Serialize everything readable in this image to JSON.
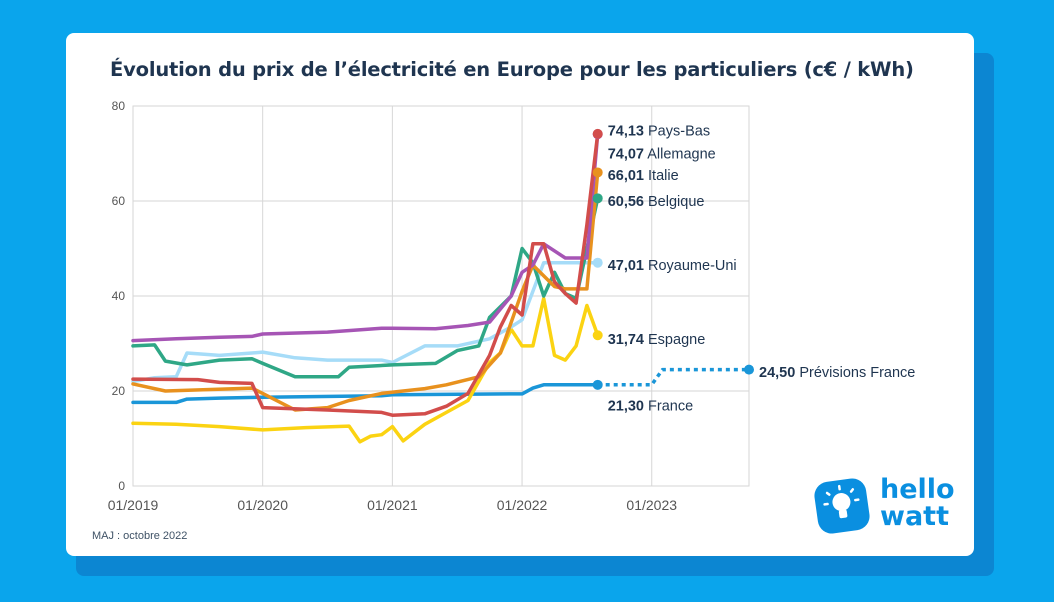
{
  "title": "Évolution du prix de l’électricité en Europe pour les particuliers (c€ / kWh)",
  "footnote": "MAJ : octobre 2022",
  "logo": {
    "line1": "hello",
    "line2": "watt",
    "icon": "lightbulb-icon"
  },
  "colors": {
    "background": "#0aa5ec",
    "card": "#ffffff",
    "title": "#1f3550",
    "grid": "#d6d6d6",
    "axis_text": "#555555",
    "label_value": "#1f3550"
  },
  "chart_data": {
    "type": "line",
    "title": "Évolution du prix de l’électricité en Europe pour les particuliers (c€ / kWh)",
    "xlabel": "",
    "ylabel": "",
    "x_range": [
      "2019-01",
      "2023-10"
    ],
    "ylim": [
      0,
      80
    ],
    "y_ticks": [
      "0",
      "20",
      "40",
      "60",
      "80"
    ],
    "x_ticks": [
      {
        "label": "01/2019",
        "x": "2019-01"
      },
      {
        "label": "01/2020",
        "x": "2020-01"
      },
      {
        "label": "01/2021",
        "x": "2021-01"
      },
      {
        "label": "01/2022",
        "x": "2022-01"
      },
      {
        "label": "01/2023",
        "x": "2023-01"
      }
    ],
    "grid": true,
    "series": [
      {
        "name": "France",
        "color": "#1a96d8",
        "final_value": "21,30",
        "points": [
          [
            "2019-01",
            17.6
          ],
          [
            "2019-05",
            17.6
          ],
          [
            "2019-06",
            18.3
          ],
          [
            "2019-09",
            18.5
          ],
          [
            "2020-01",
            18.7
          ],
          [
            "2020-12",
            19.0
          ],
          [
            "2021-01",
            19.2
          ],
          [
            "2021-12",
            19.4
          ],
          [
            "2022-01",
            19.4
          ],
          [
            "2022-02",
            20.6
          ],
          [
            "2022-03",
            21.3
          ],
          [
            "2022-08",
            21.3
          ]
        ]
      },
      {
        "name": "Prévisions France",
        "color": "#1a96d8",
        "dashed": true,
        "final_value": "24,50",
        "points": [
          [
            "2022-08",
            21.3
          ],
          [
            "2023-01",
            21.3
          ],
          [
            "2023-02",
            24.5
          ],
          [
            "2023-10",
            24.5
          ]
        ]
      },
      {
        "name": "Pays-Bas",
        "color": "#d24d4b",
        "final_value": "74,13",
        "points": [
          [
            "2019-01",
            22.5
          ],
          [
            "2019-07",
            22.4
          ],
          [
            "2019-09",
            21.8
          ],
          [
            "2019-12",
            21.6
          ],
          [
            "2020-01",
            16.5
          ],
          [
            "2020-07",
            16.0
          ],
          [
            "2020-12",
            15.5
          ],
          [
            "2021-01",
            14.9
          ],
          [
            "2021-04",
            15.2
          ],
          [
            "2021-06",
            16.8
          ],
          [
            "2021-08",
            19.5
          ],
          [
            "2021-10",
            27.5
          ],
          [
            "2021-11",
            33.5
          ],
          [
            "2021-12",
            38.0
          ],
          [
            "2022-01",
            36.0
          ],
          [
            "2022-02",
            51.0
          ],
          [
            "2022-03",
            51.0
          ],
          [
            "2022-04",
            43.0
          ],
          [
            "2022-05",
            40.5
          ],
          [
            "2022-06",
            38.5
          ],
          [
            "2022-07",
            55.0
          ],
          [
            "2022-08",
            74.13
          ]
        ]
      },
      {
        "name": "Allemagne",
        "color": "#a655b5",
        "final_value": "74,07",
        "points": [
          [
            "2019-01",
            30.6
          ],
          [
            "2019-05",
            31.0
          ],
          [
            "2019-09",
            31.3
          ],
          [
            "2019-12",
            31.5
          ],
          [
            "2020-01",
            32.0
          ],
          [
            "2020-07",
            32.4
          ],
          [
            "2020-12",
            33.2
          ],
          [
            "2021-01",
            33.2
          ],
          [
            "2021-05",
            33.1
          ],
          [
            "2021-08",
            33.8
          ],
          [
            "2021-10",
            34.5
          ],
          [
            "2021-12",
            40.0
          ],
          [
            "2022-01",
            45.0
          ],
          [
            "2022-02",
            46.5
          ],
          [
            "2022-03",
            51.0
          ],
          [
            "2022-05",
            48.0
          ],
          [
            "2022-07",
            48.0
          ],
          [
            "2022-08",
            74.07
          ]
        ]
      },
      {
        "name": "Italie",
        "color": "#e8911e",
        "final_value": "66,01",
        "points": [
          [
            "2019-01",
            21.5
          ],
          [
            "2019-04",
            20.0
          ],
          [
            "2019-12",
            20.6
          ],
          [
            "2020-01",
            19.5
          ],
          [
            "2020-04",
            16.0
          ],
          [
            "2020-07",
            16.5
          ],
          [
            "2020-09",
            18.0
          ],
          [
            "2020-12",
            19.5
          ],
          [
            "2021-04",
            20.5
          ],
          [
            "2021-06",
            21.3
          ],
          [
            "2021-09",
            23.0
          ],
          [
            "2021-11",
            28.0
          ],
          [
            "2022-01",
            41.0
          ],
          [
            "2022-02",
            46.5
          ],
          [
            "2022-04",
            42.0
          ],
          [
            "2022-05",
            41.5
          ],
          [
            "2022-07",
            41.5
          ],
          [
            "2022-08",
            66.01
          ]
        ]
      },
      {
        "name": "Belgique",
        "color": "#2fa786",
        "final_value": "60,56",
        "points": [
          [
            "2019-01",
            29.5
          ],
          [
            "2019-03",
            29.7
          ],
          [
            "2019-04",
            26.3
          ],
          [
            "2019-06",
            25.5
          ],
          [
            "2019-09",
            26.5
          ],
          [
            "2019-12",
            26.8
          ],
          [
            "2020-01",
            25.8
          ],
          [
            "2020-04",
            23.0
          ],
          [
            "2020-08",
            23.0
          ],
          [
            "2020-09",
            25.0
          ],
          [
            "2021-01",
            25.5
          ],
          [
            "2021-05",
            25.8
          ],
          [
            "2021-07",
            28.5
          ],
          [
            "2021-09",
            29.5
          ],
          [
            "2021-10",
            35.5
          ],
          [
            "2021-12",
            40.0
          ],
          [
            "2022-01",
            50.0
          ],
          [
            "2022-02",
            47.0
          ],
          [
            "2022-03",
            40.0
          ],
          [
            "2022-04",
            45.0
          ],
          [
            "2022-05",
            40.5
          ],
          [
            "2022-06",
            39.5
          ],
          [
            "2022-07",
            50.0
          ],
          [
            "2022-08",
            60.56
          ]
        ]
      },
      {
        "name": "Royaume-Uni",
        "color": "#a6dcf8",
        "final_value": "47,01",
        "points": [
          [
            "2019-01",
            22.0
          ],
          [
            "2019-03",
            22.8
          ],
          [
            "2019-05",
            23.0
          ],
          [
            "2019-06",
            28.0
          ],
          [
            "2019-09",
            27.5
          ],
          [
            "2019-12",
            28.0
          ],
          [
            "2020-01",
            28.2
          ],
          [
            "2020-04",
            27.0
          ],
          [
            "2020-07",
            26.5
          ],
          [
            "2020-12",
            26.5
          ],
          [
            "2021-01",
            26.0
          ],
          [
            "2021-04",
            29.5
          ],
          [
            "2021-07",
            29.5
          ],
          [
            "2021-10",
            31.0
          ],
          [
            "2021-12",
            33.5
          ],
          [
            "2022-01",
            35.0
          ],
          [
            "2022-03",
            47.0
          ],
          [
            "2022-06",
            47.0
          ],
          [
            "2022-08",
            47.01
          ]
        ]
      },
      {
        "name": "Espagne",
        "color": "#fbd312",
        "final_value": "31,74",
        "points": [
          [
            "2019-01",
            13.2
          ],
          [
            "2019-05",
            13.0
          ],
          [
            "2019-09",
            12.5
          ],
          [
            "2020-01",
            11.8
          ],
          [
            "2020-05",
            12.3
          ],
          [
            "2020-09",
            12.6
          ],
          [
            "2020-10",
            9.3
          ],
          [
            "2020-11",
            10.5
          ],
          [
            "2020-12",
            10.8
          ],
          [
            "2021-01",
            12.5
          ],
          [
            "2021-02",
            9.5
          ],
          [
            "2021-04",
            13.0
          ],
          [
            "2021-06",
            15.5
          ],
          [
            "2021-08",
            18.0
          ],
          [
            "2021-10",
            26.0
          ],
          [
            "2021-11",
            28.0
          ],
          [
            "2021-12",
            33.0
          ],
          [
            "2022-01",
            29.5
          ],
          [
            "2022-02",
            29.5
          ],
          [
            "2022-03",
            39.5
          ],
          [
            "2022-04",
            27.5
          ],
          [
            "2022-05",
            26.5
          ],
          [
            "2022-06",
            29.5
          ],
          [
            "2022-07",
            38.0
          ],
          [
            "2022-08",
            31.74
          ]
        ]
      }
    ],
    "end_labels": [
      {
        "series": "Pays-Bas",
        "value": "74,13",
        "text": "Pays-Bas",
        "label_y": 74.8
      },
      {
        "series": "Allemagne",
        "value": "74,07",
        "text": "Allemagne",
        "label_y": 70.0
      },
      {
        "series": "Italie",
        "value": "66,01",
        "text": "Italie",
        "label_y": 65.5
      },
      {
        "series": "Belgique",
        "value": "60,56",
        "text": "Belgique",
        "label_y": 60.0
      },
      {
        "series": "Royaume-Uni",
        "value": "47,01",
        "text": "Royaume-Uni",
        "label_y": 46.5
      },
      {
        "series": "Espagne",
        "value": "31,74",
        "text": "Espagne",
        "label_y": 31.0
      },
      {
        "series": "France",
        "value": "21,30",
        "text": "France",
        "label_y": 17.0
      },
      {
        "series": "Prévisions France",
        "value": "24,50",
        "text": "Prévisions France",
        "label_y": 24.0
      }
    ]
  }
}
